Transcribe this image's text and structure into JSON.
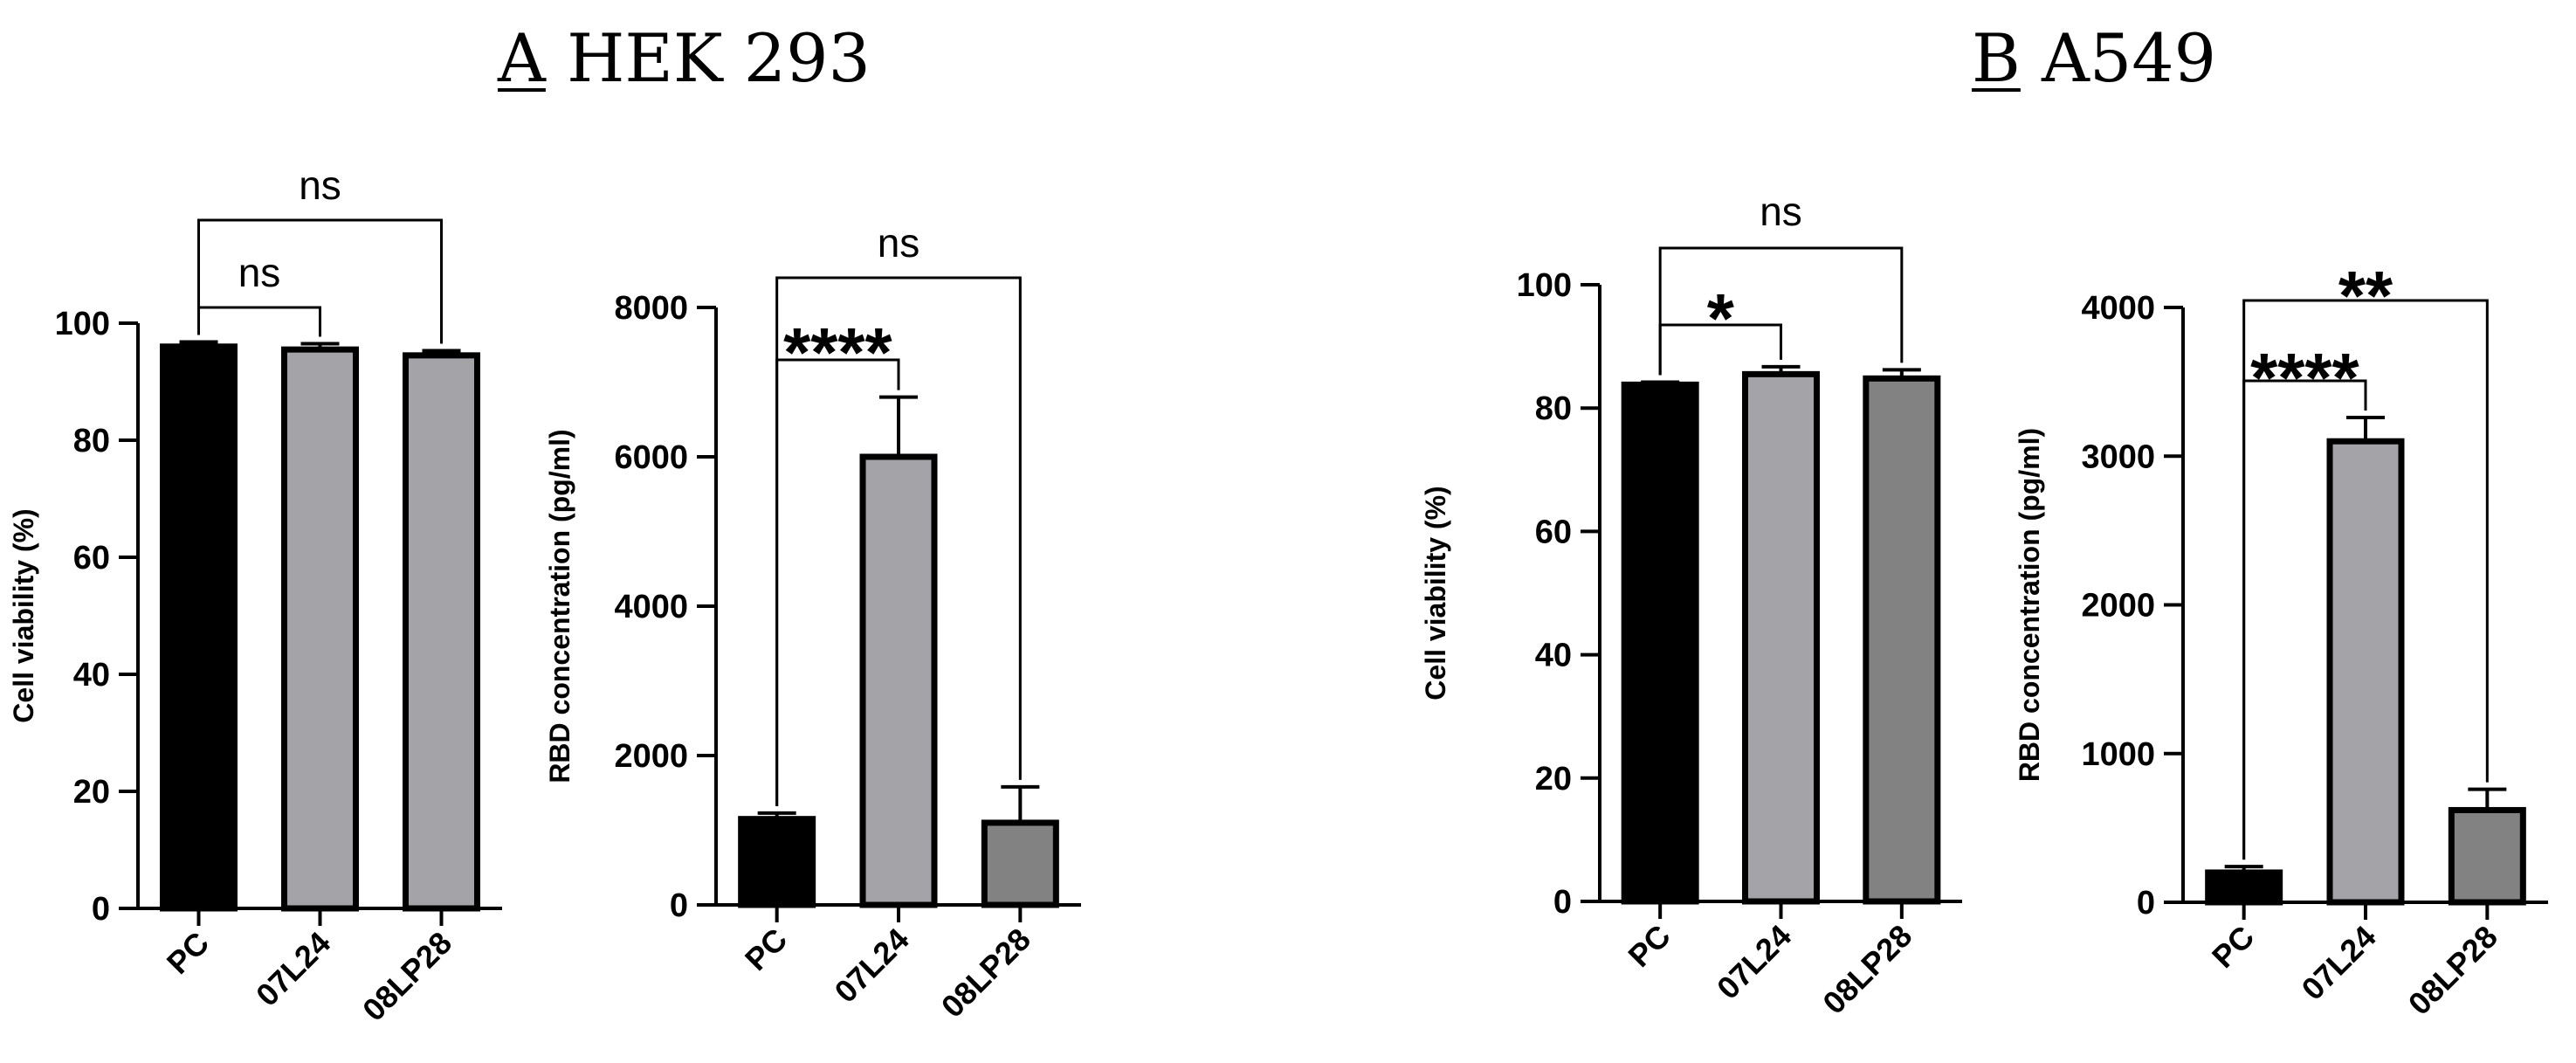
{
  "panels": [
    {
      "letter": "A",
      "cell_line": "HEK 293"
    },
    {
      "letter": "B",
      "cell_line": "A549"
    }
  ],
  "colors": {
    "black": "#000000",
    "light_grey": "#a4a4a8",
    "dark_grey": "#828282",
    "axis": "#000000"
  },
  "chart_data": [
    {
      "id": "A-viability",
      "panel": "A",
      "type": "bar",
      "title": "",
      "xlabel": "",
      "ylabel": "Cell viability (%)",
      "ylim": [
        0,
        100
      ],
      "yticks": [
        0,
        20,
        40,
        60,
        80,
        100
      ],
      "categories": [
        "PC",
        "07L24",
        "08LP28"
      ],
      "values": [
        96,
        95.5,
        94.5
      ],
      "errors": [
        0.8,
        1.0,
        0.8
      ],
      "bar_colors": [
        "black",
        "light_grey",
        "light_grey"
      ],
      "significance": [
        {
          "from": 0,
          "to": 1,
          "label": "ns"
        },
        {
          "from": 0,
          "to": 2,
          "label": "ns"
        }
      ]
    },
    {
      "id": "A-rbd",
      "panel": "A",
      "type": "bar",
      "title": "",
      "xlabel": "",
      "ylabel": "RBD concentration (pg/ml)",
      "ylim": [
        0,
        8000
      ],
      "yticks": [
        0,
        2000,
        4000,
        6000,
        8000
      ],
      "categories": [
        "PC",
        "07L24",
        "08LP28"
      ],
      "values": [
        1150,
        6000,
        1100
      ],
      "errors": [
        80,
        800,
        480
      ],
      "bar_colors": [
        "black",
        "light_grey",
        "dark_grey"
      ],
      "significance": [
        {
          "from": 0,
          "to": 1,
          "label": "****"
        },
        {
          "from": 0,
          "to": 2,
          "label": "ns"
        }
      ]
    },
    {
      "id": "B-viability",
      "panel": "B",
      "type": "bar",
      "title": "",
      "xlabel": "",
      "ylabel": "Cell viability (%)",
      "ylim": [
        0,
        100
      ],
      "yticks": [
        0,
        20,
        40,
        60,
        80,
        100
      ],
      "categories": [
        "PC",
        "07L24",
        "08LP28"
      ],
      "values": [
        83.8,
        85.5,
        84.8
      ],
      "errors": [
        0.4,
        1.2,
        1.4
      ],
      "bar_colors": [
        "black",
        "light_grey",
        "dark_grey"
      ],
      "significance": [
        {
          "from": 0,
          "to": 1,
          "label": "*"
        },
        {
          "from": 0,
          "to": 2,
          "label": "ns"
        }
      ]
    },
    {
      "id": "B-rbd",
      "panel": "B",
      "type": "bar",
      "title": "",
      "xlabel": "",
      "ylabel": "RBD concentration (pg/ml)",
      "ylim": [
        0,
        4000
      ],
      "yticks": [
        0,
        1000,
        2000,
        3000,
        4000
      ],
      "categories": [
        "PC",
        "07L24",
        "08LP28"
      ],
      "values": [
        200,
        3100,
        620
      ],
      "errors": [
        40,
        160,
        140
      ],
      "bar_colors": [
        "black",
        "light_grey",
        "dark_grey"
      ],
      "significance": [
        {
          "from": 0,
          "to": 1,
          "label": "****"
        },
        {
          "from": 0,
          "to": 2,
          "label": "**"
        }
      ]
    }
  ]
}
